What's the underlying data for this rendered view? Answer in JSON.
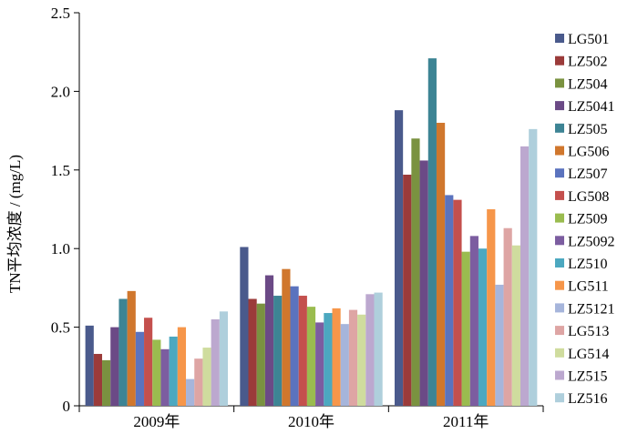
{
  "chart_data": {
    "type": "bar",
    "ylabel": "TN平均浓度 / (mg/L)",
    "xlabel": "",
    "ylim": [
      0,
      2.5
    ],
    "yticks": [
      "0",
      "0.5",
      "1.0",
      "1.5",
      "2.0",
      "2.5"
    ],
    "categories": [
      "2009年",
      "2010年",
      "2011年"
    ],
    "grid": false,
    "legend_position": "right",
    "series": [
      {
        "name": "LG501",
        "color": "#4A5A8C",
        "values": [
          0.51,
          1.01,
          1.88
        ]
      },
      {
        "name": "LZ502",
        "color": "#9B3B3A",
        "values": [
          0.33,
          0.68,
          1.47
        ]
      },
      {
        "name": "LZ504",
        "color": "#7A9240",
        "values": [
          0.29,
          0.65,
          1.7
        ]
      },
      {
        "name": "LZ5041",
        "color": "#6B4A86",
        "values": [
          0.5,
          0.83,
          1.56
        ]
      },
      {
        "name": "LZ505",
        "color": "#3D8494",
        "values": [
          0.68,
          0.7,
          2.21
        ]
      },
      {
        "name": "LG506",
        "color": "#D0772D",
        "values": [
          0.73,
          0.87,
          1.8
        ]
      },
      {
        "name": "LZ507",
        "color": "#5B73BE",
        "values": [
          0.47,
          0.76,
          1.34
        ]
      },
      {
        "name": "LG508",
        "color": "#C4504D",
        "values": [
          0.56,
          0.7,
          1.31
        ]
      },
      {
        "name": "LZ509",
        "color": "#9ABC4F",
        "values": [
          0.42,
          0.63,
          0.98
        ]
      },
      {
        "name": "LZ5092",
        "color": "#7C5DA0",
        "values": [
          0.36,
          0.53,
          1.08
        ]
      },
      {
        "name": "LZ510",
        "color": "#4CA8C0",
        "values": [
          0.44,
          0.59,
          1.0
        ]
      },
      {
        "name": "LG511",
        "color": "#F6964A",
        "values": [
          0.5,
          0.62,
          1.25
        ]
      },
      {
        "name": "LZ5121",
        "color": "#A6B5DB",
        "values": [
          0.17,
          0.52,
          0.77
        ]
      },
      {
        "name": "LG513",
        "color": "#DEA5A4",
        "values": [
          0.3,
          0.61,
          1.13
        ]
      },
      {
        "name": "LG514",
        "color": "#CFDC9E",
        "values": [
          0.37,
          0.58,
          1.02
        ]
      },
      {
        "name": "LZ515",
        "color": "#BCA8CF",
        "values": [
          0.55,
          0.71,
          1.65
        ]
      },
      {
        "name": "LZ516",
        "color": "#AFCFDC",
        "values": [
          0.6,
          0.72,
          1.76
        ]
      }
    ]
  }
}
